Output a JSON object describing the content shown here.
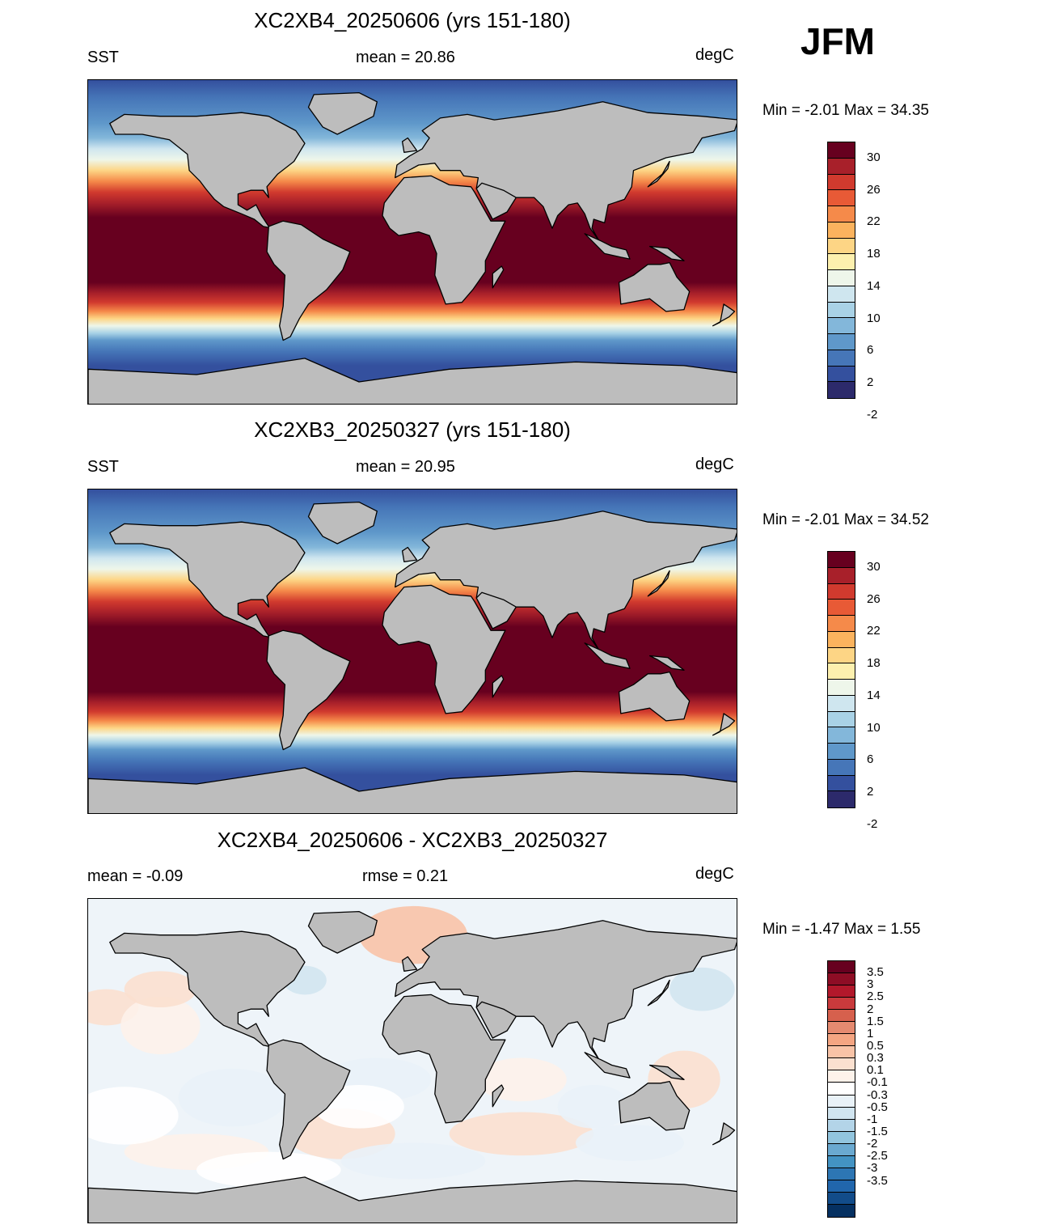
{
  "season": "JFM",
  "panels": [
    {
      "title": "XC2XB4_20250606 (yrs 151-180)",
      "left_label": "SST",
      "center_label": "mean =  20.86",
      "right_label": "degC",
      "minmax": "Min =  -2.01 Max =  34.35",
      "kind": "abs",
      "land_color": "#bdbdbd"
    },
    {
      "title": "XC2XB3_20250327 (yrs 151-180)",
      "left_label": "SST",
      "center_label": "mean =  20.95",
      "right_label": "degC",
      "minmax": "Min =  -2.01 Max =  34.52",
      "kind": "abs",
      "land_color": "#bdbdbd"
    },
    {
      "title": "XC2XB4_20250606 - XC2XB3_20250327",
      "left_label": "mean =  -0.09",
      "center_label": "rmse =   0.21",
      "right_label": "degC",
      "minmax": "Min =  -1.47 Max =   1.55",
      "kind": "diff",
      "land_color": "#bdbdbd"
    }
  ],
  "abs_colorbar": {
    "colors": [
      "#67001f",
      "#a8202a",
      "#d13a2e",
      "#e85a36",
      "#f58a4a",
      "#fbb35e",
      "#fdd585",
      "#fdf0ae",
      "#eef6ea",
      "#cfe6ef",
      "#a9d2e6",
      "#83b7da",
      "#5f98ca",
      "#4676b8",
      "#34509e",
      "#2c2a6b"
    ],
    "labels": [
      "30",
      "26",
      "22",
      "18",
      "14",
      "10",
      "6",
      "2",
      "-2"
    ]
  },
  "diff_colorbar": {
    "colors": [
      "#67001f",
      "#8e0d25",
      "#b2182b",
      "#c93a3c",
      "#d6604d",
      "#e58a70",
      "#f4a582",
      "#f8c3a7",
      "#fbe0cf",
      "#fdf2ea",
      "#ffffff",
      "#e9f2f8",
      "#d1e5f0",
      "#b3d4e8",
      "#92c5de",
      "#6aa9d0",
      "#4393c3",
      "#2d76b4",
      "#2166ac",
      "#124c8a",
      "#053061"
    ],
    "labels": [
      "3.5",
      "3",
      "2.5",
      "2",
      "1.5",
      "1",
      "0.5",
      "0.3",
      "0.1",
      "-0.1",
      "-0.3",
      "-0.5",
      "-1",
      "-1.5",
      "-2",
      "-2.5",
      "-3",
      "-3.5"
    ]
  }
}
